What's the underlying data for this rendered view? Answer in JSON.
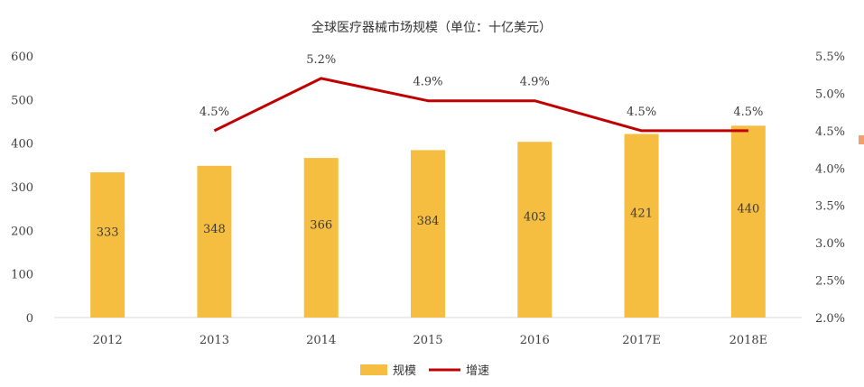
{
  "chart_data": {
    "type": "bar+line",
    "title": "全球医疗器械市场规模（单位：十亿美元）",
    "categories": [
      "2012",
      "2013",
      "2014",
      "2015",
      "2016",
      "2017E",
      "2018E"
    ],
    "series": [
      {
        "name": "规模",
        "type": "bar",
        "axis": "left",
        "values": [
          333,
          348,
          366,
          384,
          403,
          421,
          440
        ],
        "labels": [
          "333",
          "348",
          "366",
          "384",
          "403",
          "421",
          "440"
        ]
      },
      {
        "name": "增速",
        "type": "line",
        "axis": "right",
        "values": [
          null,
          4.5,
          5.2,
          4.9,
          4.9,
          4.5,
          4.5
        ],
        "labels": [
          "",
          "4.5%",
          "5.2%",
          "4.9%",
          "4.9%",
          "4.5%",
          "4.5%"
        ]
      }
    ],
    "y_left": {
      "min": 0,
      "max": 600,
      "ticks": [
        "0",
        "100",
        "200",
        "300",
        "400",
        "500",
        "600"
      ]
    },
    "y_right": {
      "min": 2.0,
      "max": 5.5,
      "ticks": [
        "2.0%",
        "2.5%",
        "3.0%",
        "3.5%",
        "4.0%",
        "4.5%",
        "5.0%",
        "5.5%"
      ]
    },
    "colors": {
      "bar": "#F5BE41",
      "line": "#C00000",
      "axis": "#d9d9d9",
      "stray_marker": "#F0A070"
    },
    "legend": {
      "position": "bottom"
    },
    "grid": false
  }
}
